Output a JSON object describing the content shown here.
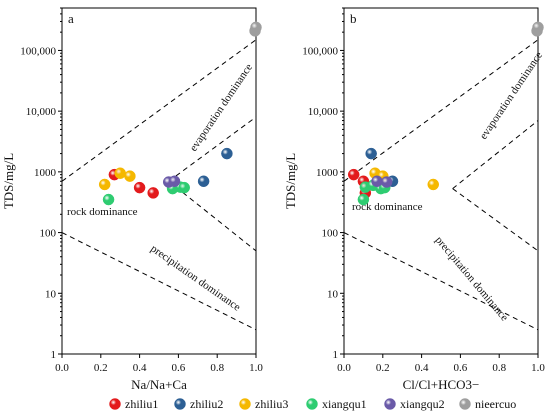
{
  "chart_data": [
    {
      "type": "scatter",
      "panel_label": "a",
      "xlabel": "Na/Na+Ca",
      "ylabel": "TDS/mg/L",
      "xlim": [
        0.0,
        1.0
      ],
      "ylim": [
        1,
        500000
      ],
      "yscale": "log",
      "x_ticks": [
        "0.0",
        "0.2",
        "0.4",
        "0.6",
        "0.8",
        "1.0"
      ],
      "y_ticks": [
        "1",
        "10",
        "100",
        "1000",
        "10,000",
        "100,000"
      ],
      "grid": false,
      "annotations": [
        "evaporation dominance",
        "rock dominance",
        "precipitation dominance"
      ],
      "series": [
        {
          "name": "zhiliu1",
          "color": "#e31a1c",
          "points": [
            [
              0.27,
              900
            ],
            [
              0.4,
              550
            ],
            [
              0.47,
              450
            ]
          ]
        },
        {
          "name": "zhiliu2",
          "color": "#2c5f94",
          "points": [
            [
              0.85,
              2000
            ],
            [
              0.73,
              700
            ]
          ]
        },
        {
          "name": "zhiliu3",
          "color": "#f5b800",
          "points": [
            [
              0.22,
              620
            ],
            [
              0.3,
              950
            ],
            [
              0.35,
              850
            ]
          ]
        },
        {
          "name": "xiangqu1",
          "color": "#2ecc71",
          "points": [
            [
              0.24,
              350
            ],
            [
              0.57,
              530
            ],
            [
              0.61,
              560
            ],
            [
              0.63,
              550
            ]
          ]
        },
        {
          "name": "xiangqu2",
          "color": "#6a5aa8",
          "points": [
            [
              0.55,
              680
            ],
            [
              0.58,
              700
            ]
          ]
        },
        {
          "name": "nieercuo",
          "color": "#9e9e9e",
          "points": [
            [
              0.995,
              210000
            ],
            [
              1.0,
              240000
            ]
          ]
        }
      ]
    },
    {
      "type": "scatter",
      "panel_label": "b",
      "xlabel": "Cl/Cl+HCO3−",
      "ylabel": "TDS/mg/L",
      "xlim": [
        0.0,
        1.0
      ],
      "ylim": [
        1,
        500000
      ],
      "yscale": "log",
      "x_ticks": [
        "0.0",
        "0.2",
        "0.4",
        "0.6",
        "0.8",
        "1.0"
      ],
      "y_ticks": [
        "1",
        "10",
        "100",
        "1000",
        "10,000",
        "100,000"
      ],
      "grid": false,
      "annotations": [
        "evaporation dominance",
        "rock dominance",
        "precipitation dominance"
      ],
      "series": [
        {
          "name": "zhiliu1",
          "color": "#e31a1c",
          "points": [
            [
              0.05,
              900
            ],
            [
              0.1,
              700
            ],
            [
              0.11,
              450
            ]
          ]
        },
        {
          "name": "zhiliu2",
          "color": "#2c5f94",
          "points": [
            [
              0.14,
              2000
            ],
            [
              0.25,
              700
            ]
          ]
        },
        {
          "name": "zhiliu3",
          "color": "#f5b800",
          "points": [
            [
              0.16,
              950
            ],
            [
              0.2,
              850
            ],
            [
              0.46,
              620
            ]
          ]
        },
        {
          "name": "xiangqu1",
          "color": "#2ecc71",
          "points": [
            [
              0.1,
              350
            ],
            [
              0.11,
              560
            ],
            [
              0.15,
              600
            ],
            [
              0.19,
              530
            ],
            [
              0.21,
              550
            ]
          ]
        },
        {
          "name": "xiangqu2",
          "color": "#6a5aa8",
          "points": [
            [
              0.17,
              700
            ],
            [
              0.22,
              680
            ]
          ]
        },
        {
          "name": "nieercuo",
          "color": "#9e9e9e",
          "points": [
            [
              0.995,
              210000
            ],
            [
              1.0,
              240000
            ]
          ]
        }
      ]
    }
  ],
  "legend": {
    "placement": "bottom",
    "items": [
      {
        "name": "zhiliu1",
        "color": "#e31a1c"
      },
      {
        "name": "zhiliu2",
        "color": "#2c5f94"
      },
      {
        "name": "zhiliu3",
        "color": "#f5b800"
      },
      {
        "name": "xiangqu1",
        "color": "#2ecc71"
      },
      {
        "name": "xiangqu2",
        "color": "#6a5aa8"
      },
      {
        "name": "nieercuo",
        "color": "#9e9e9e"
      }
    ]
  }
}
